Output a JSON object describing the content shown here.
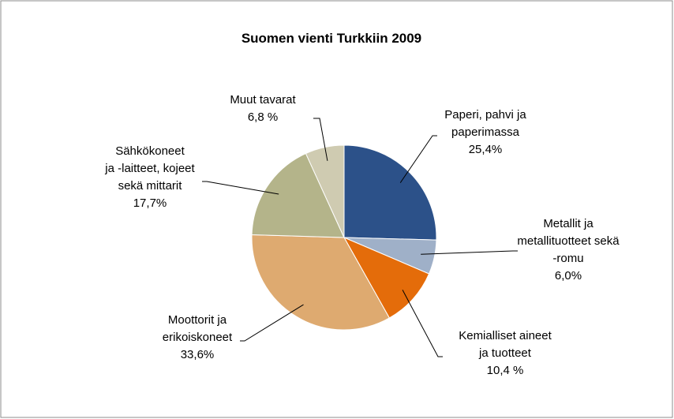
{
  "chart_data": {
    "type": "pie",
    "title": "Suomen vienti Turkkiin 2009",
    "categories": [
      "Paperi, pahvi ja\npaperimassa",
      "Metallit ja\nmetallituotteet sekä\n-romu",
      "Kemialliset aineet\nja tuotteet",
      "Moottorit ja\nerikoiskoneet",
      "Sähkökoneet\nja -laitteet, kojeet\nsekä mittarit",
      "Muut tavarat"
    ],
    "values": [
      25.4,
      6.0,
      10.4,
      33.6,
      17.7,
      6.8
    ],
    "value_labels": [
      "25,4%",
      "6,0%",
      "10,4 %",
      "33,6%",
      "17,7%",
      "6,8 %"
    ],
    "colors": [
      "#2c5189",
      "#9fb0c8",
      "#e46c0a",
      "#deaa70",
      "#b4b48a",
      "#cfcbb1"
    ]
  }
}
